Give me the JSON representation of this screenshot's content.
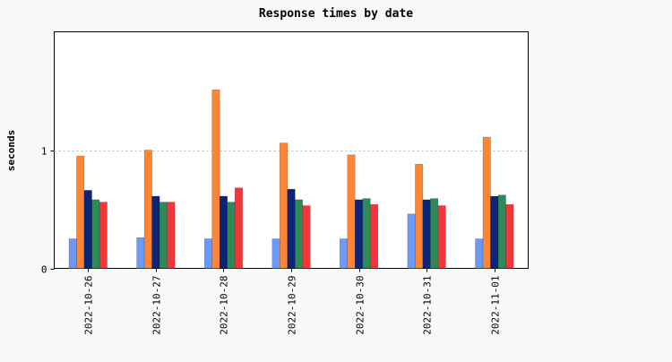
{
  "chart_data": {
    "type": "bar",
    "title": "Response times by date",
    "xlabel": "",
    "ylabel": "seconds",
    "ylim": [
      0,
      2
    ],
    "yticks": [
      0,
      1
    ],
    "grid": "horizontal dotted at y=1",
    "legend": "none",
    "categories": [
      "2022-10-26",
      "2022-10-27",
      "2022-10-28",
      "2022-10-29",
      "2022-10-30",
      "2022-10-31",
      "2022-11-01"
    ],
    "series": [
      {
        "color": "#6c9af8",
        "values": [
          0.25,
          0.26,
          0.25,
          0.25,
          0.25,
          0.46,
          0.25
        ]
      },
      {
        "color": "#ff8534",
        "values": [
          0.95,
          1.0,
          1.51,
          1.06,
          0.96,
          0.88,
          1.11
        ]
      },
      {
        "color": "#0a2478",
        "values": [
          0.66,
          0.61,
          0.61,
          0.67,
          0.58,
          0.58,
          0.61
        ]
      },
      {
        "color": "#2e8b57",
        "values": [
          0.58,
          0.56,
          0.56,
          0.58,
          0.59,
          0.59,
          0.62
        ]
      },
      {
        "color": "#f2363a",
        "values": [
          0.56,
          0.56,
          0.68,
          0.53,
          0.54,
          0.53,
          0.54
        ]
      }
    ]
  }
}
